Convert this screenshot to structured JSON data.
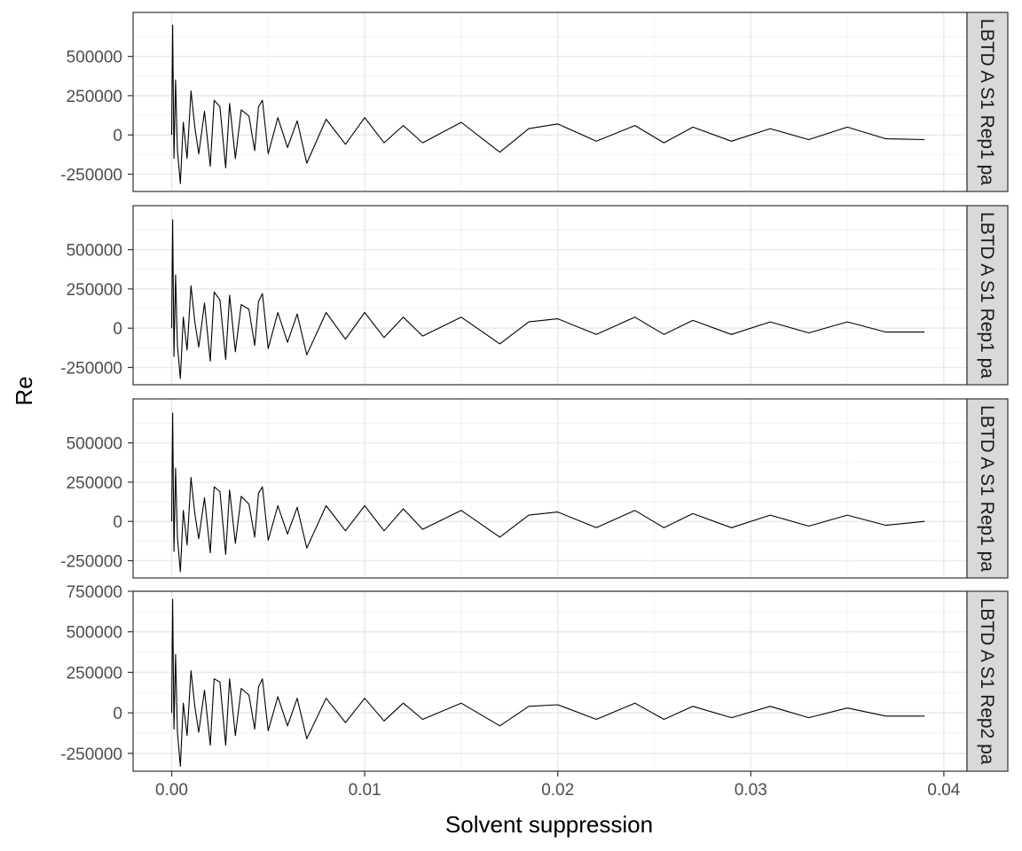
{
  "chart_data": {
    "type": "line",
    "xlabel": "Solvent suppression",
    "ylabel": "Re",
    "xlim": [
      -0.002,
      0.0412
    ],
    "x_ticks": [
      0.0,
      0.01,
      0.02,
      0.03,
      0.04
    ],
    "x_tick_labels": [
      "0.00",
      "0.01",
      "0.02",
      "0.03",
      "0.04"
    ],
    "grid": true,
    "line_color": "#000000",
    "strip_background": "#d9d9d9",
    "series": [
      {
        "strip_label": "LBTD A S1 Rep1 pa",
        "ylim": [
          -360000,
          780000
        ],
        "y_ticks": [
          -250000,
          0,
          250000,
          500000
        ],
        "y_tick_labels": [
          "-250000",
          "0",
          "250000",
          "500000"
        ],
        "x": [
          0.0,
          5e-05,
          0.00012,
          0.0002,
          0.0003,
          0.00045,
          0.0006,
          0.0008,
          0.001,
          0.0012,
          0.0014,
          0.0017,
          0.002,
          0.0022,
          0.0025,
          0.0028,
          0.003,
          0.0033,
          0.0036,
          0.004,
          0.0043,
          0.0045,
          0.0047,
          0.005,
          0.0055,
          0.006,
          0.0065,
          0.007,
          0.008,
          0.009,
          0.01,
          0.011,
          0.012,
          0.013,
          0.015,
          0.017,
          0.0185,
          0.02,
          0.022,
          0.024,
          0.0255,
          0.027,
          0.029,
          0.031,
          0.033,
          0.035,
          0.037,
          0.039
        ],
        "y": [
          0,
          700000,
          -150000,
          350000,
          -100000,
          -310000,
          80000,
          -150000,
          280000,
          50000,
          -120000,
          150000,
          -200000,
          220000,
          180000,
          -210000,
          200000,
          -150000,
          160000,
          120000,
          -100000,
          180000,
          220000,
          -120000,
          110000,
          -80000,
          90000,
          -180000,
          100000,
          -60000,
          110000,
          -50000,
          60000,
          -50000,
          80000,
          -110000,
          40000,
          70000,
          -40000,
          60000,
          -50000,
          50000,
          -40000,
          40000,
          -30000,
          50000,
          -25000,
          -30000
        ]
      },
      {
        "strip_label": "LBTD A S1 Rep1 pa",
        "ylim": [
          -360000,
          780000
        ],
        "y_ticks": [
          -250000,
          0,
          250000,
          500000
        ],
        "y_tick_labels": [
          "-250000",
          "0",
          "250000",
          "500000"
        ],
        "x": [
          0.0,
          5e-05,
          0.00012,
          0.0002,
          0.0003,
          0.00045,
          0.0006,
          0.0008,
          0.001,
          0.0012,
          0.0014,
          0.0017,
          0.002,
          0.0022,
          0.0025,
          0.0028,
          0.003,
          0.0033,
          0.0036,
          0.004,
          0.0043,
          0.0045,
          0.0047,
          0.005,
          0.0055,
          0.006,
          0.0065,
          0.007,
          0.008,
          0.009,
          0.01,
          0.011,
          0.012,
          0.013,
          0.015,
          0.017,
          0.0185,
          0.02,
          0.022,
          0.024,
          0.0255,
          0.027,
          0.029,
          0.031,
          0.033,
          0.035,
          0.037,
          0.039
        ],
        "y": [
          0,
          690000,
          -180000,
          340000,
          -110000,
          -320000,
          70000,
          -140000,
          270000,
          40000,
          -120000,
          160000,
          -210000,
          230000,
          180000,
          -200000,
          210000,
          -150000,
          150000,
          120000,
          -110000,
          170000,
          220000,
          -130000,
          100000,
          -90000,
          90000,
          -170000,
          100000,
          -70000,
          100000,
          -60000,
          70000,
          -50000,
          70000,
          -100000,
          40000,
          60000,
          -40000,
          70000,
          -40000,
          50000,
          -40000,
          40000,
          -30000,
          40000,
          -25000,
          -25000
        ]
      },
      {
        "strip_label": "LBTD A S1 Rep1 pa",
        "ylim": [
          -360000,
          780000
        ],
        "y_ticks": [
          -250000,
          0,
          250000,
          500000
        ],
        "y_tick_labels": [
          "-250000",
          "0",
          "250000",
          "500000"
        ],
        "x": [
          0.0,
          5e-05,
          0.00012,
          0.0002,
          0.0003,
          0.00045,
          0.0006,
          0.0008,
          0.001,
          0.0012,
          0.0014,
          0.0017,
          0.002,
          0.0022,
          0.0025,
          0.0028,
          0.003,
          0.0033,
          0.0036,
          0.004,
          0.0043,
          0.0045,
          0.0047,
          0.005,
          0.0055,
          0.006,
          0.0065,
          0.007,
          0.008,
          0.009,
          0.01,
          0.011,
          0.012,
          0.013,
          0.015,
          0.017,
          0.0185,
          0.02,
          0.022,
          0.024,
          0.0255,
          0.027,
          0.029,
          0.031,
          0.033,
          0.035,
          0.037,
          0.039
        ],
        "y": [
          0,
          690000,
          -190000,
          340000,
          -100000,
          -320000,
          70000,
          -150000,
          280000,
          50000,
          -110000,
          150000,
          -200000,
          220000,
          190000,
          -210000,
          200000,
          -140000,
          160000,
          110000,
          -100000,
          180000,
          220000,
          -120000,
          100000,
          -80000,
          90000,
          -170000,
          100000,
          -60000,
          100000,
          -60000,
          80000,
          -50000,
          70000,
          -100000,
          40000,
          60000,
          -40000,
          70000,
          -40000,
          50000,
          -40000,
          40000,
          -30000,
          40000,
          -25000,
          0
        ]
      },
      {
        "strip_label": "LBTD A S1 Rep2 pa",
        "ylim": [
          -360000,
          750000
        ],
        "y_ticks": [
          -250000,
          0,
          250000,
          500000,
          750000
        ],
        "y_tick_labels": [
          "-250000",
          "0",
          "250000",
          "500000",
          "750000"
        ],
        "x": [
          0.0,
          5e-05,
          0.00012,
          0.0002,
          0.0003,
          0.00045,
          0.0006,
          0.0008,
          0.001,
          0.0012,
          0.0014,
          0.0017,
          0.002,
          0.0022,
          0.0025,
          0.0028,
          0.003,
          0.0033,
          0.0036,
          0.004,
          0.0043,
          0.0045,
          0.0047,
          0.005,
          0.0055,
          0.006,
          0.0065,
          0.007,
          0.008,
          0.009,
          0.01,
          0.011,
          0.012,
          0.013,
          0.015,
          0.017,
          0.0185,
          0.02,
          0.022,
          0.024,
          0.0255,
          0.027,
          0.029,
          0.031,
          0.033,
          0.035,
          0.037,
          0.039
        ],
        "y": [
          0,
          700000,
          -100000,
          360000,
          -120000,
          -330000,
          60000,
          -140000,
          260000,
          40000,
          -120000,
          140000,
          -200000,
          210000,
          190000,
          -200000,
          210000,
          -140000,
          150000,
          110000,
          -100000,
          160000,
          210000,
          -110000,
          100000,
          -80000,
          90000,
          -160000,
          90000,
          -60000,
          90000,
          -50000,
          60000,
          -40000,
          60000,
          -80000,
          40000,
          50000,
          -40000,
          60000,
          -40000,
          40000,
          -30000,
          40000,
          -30000,
          30000,
          -20000,
          -20000
        ]
      }
    ]
  }
}
